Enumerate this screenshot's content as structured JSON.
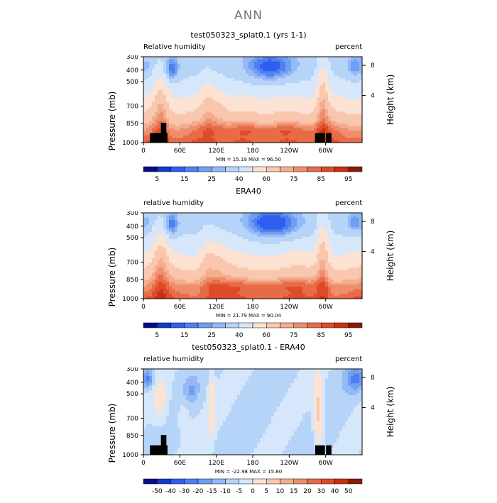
{
  "page": {
    "title": "ANN"
  },
  "colors": {
    "ramp_abs": [
      "#0b0b8a",
      "#1338d6",
      "#2f5ef0",
      "#4f7ff2",
      "#6f9ef3",
      "#93b9f6",
      "#b6d3f8",
      "#d6e7fb",
      "#fbe2d3",
      "#f8c7ae",
      "#f4ad8e",
      "#ef8e6c",
      "#e86b48",
      "#dd4b28",
      "#c8300f",
      "#8b1b08"
    ],
    "ramp_diff": [
      "#0b0b8a",
      "#1338d6",
      "#2f5ef0",
      "#4f7ff2",
      "#6f9ef3",
      "#93b9f6",
      "#b6d3f8",
      "#d6e7fb",
      "#fbe2d3",
      "#f8c7ae",
      "#f4ad8e",
      "#ef8e6c",
      "#e86b48",
      "#dd4b28",
      "#c8300f",
      "#8b1b08"
    ],
    "land": "#000000"
  },
  "chart_data": [
    {
      "type": "heatmap",
      "title": "test050323_splat0.1 (yrs 1-1)",
      "left_label": "Relative humidity",
      "right_label": "percent",
      "ylabel": "Pressure (mb)",
      "ylabel_right": "Height (km)",
      "x_ticks": [
        "0",
        "60E",
        "120E",
        "180",
        "120W",
        "60W"
      ],
      "y_ticks": [
        "300",
        "400",
        "500",
        "700",
        "850",
        "1000"
      ],
      "y_right_ticks": [
        "8",
        "4"
      ],
      "stats": "MIN =   15.19   MAX =   96.50",
      "colorbar_labels": [
        "5",
        "15",
        "25",
        "40",
        "60",
        "75",
        "85",
        "95"
      ],
      "min": 15.19,
      "max": 96.5
    },
    {
      "type": "heatmap",
      "title": "ERA40",
      "left_label": "relative humidity",
      "right_label": "percent",
      "ylabel": "Pressure (mb)",
      "ylabel_right": "Height (km)",
      "x_ticks": [
        "0",
        "60E",
        "120E",
        "180",
        "120W",
        "60W"
      ],
      "y_ticks": [
        "300",
        "400",
        "500",
        "700",
        "850",
        "1000"
      ],
      "y_right_ticks": [
        "8",
        "4"
      ],
      "stats": "MIN =   21.79   MAX =   90.04",
      "colorbar_labels": [
        "5",
        "15",
        "25",
        "40",
        "60",
        "75",
        "85",
        "95"
      ],
      "min": 21.79,
      "max": 90.04
    },
    {
      "type": "heatmap",
      "title": "test050323_splat0.1 - ERA40",
      "left_label": "relative humidity",
      "right_label": "percent",
      "ylabel": "Pressure (mb)",
      "ylabel_right": "Height (km)",
      "x_ticks": [
        "0",
        "60E",
        "120E",
        "180",
        "120W",
        "60W"
      ],
      "y_ticks": [
        "300",
        "400",
        "500",
        "700",
        "850",
        "1000"
      ],
      "y_right_ticks": [
        "8",
        "4"
      ],
      "stats": "MIN =  -22.98   MAX =   15.80",
      "colorbar_labels": [
        "-50",
        "-40",
        "-30",
        "-20",
        "-15",
        "-10",
        "-5",
        "0",
        "5",
        "10",
        "15",
        "20",
        "30",
        "40",
        "50"
      ],
      "min": -22.98,
      "max": 15.8
    }
  ]
}
